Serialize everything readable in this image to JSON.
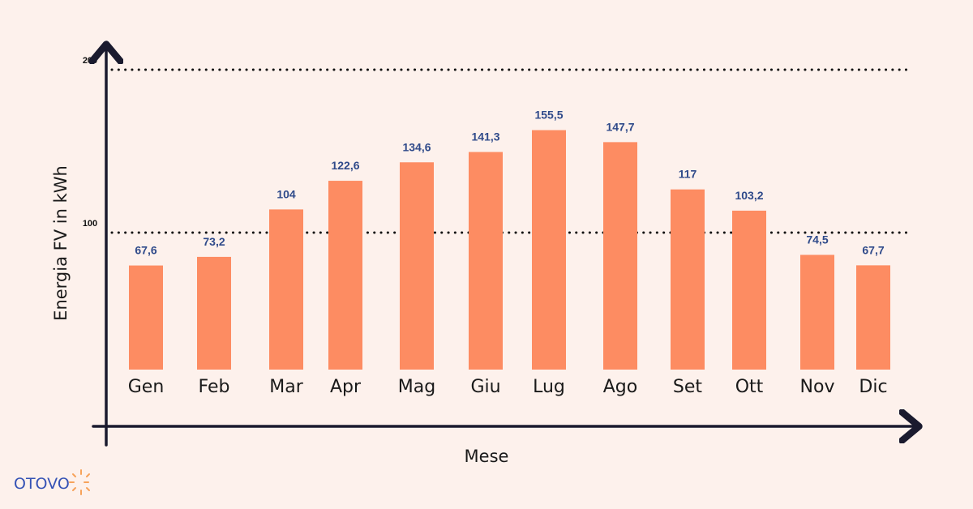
{
  "chart_data": {
    "type": "bar",
    "categories": [
      "Gen",
      "Feb",
      "Mar",
      "Apr",
      "Mag",
      "Giu",
      "Lug",
      "Ago",
      "Set",
      "Ott",
      "Nov",
      "Dic"
    ],
    "values": [
      67.6,
      73.2,
      104,
      122.6,
      134.6,
      141.3,
      155.5,
      147.7,
      117,
      103.2,
      74.5,
      67.7
    ],
    "value_labels": [
      "67,6",
      "73,2",
      "104",
      "122,6",
      "134,6",
      "141,3",
      "155,5",
      "147,7",
      "117",
      "103,2",
      "74,5",
      "67,7"
    ],
    "xlabel": "Mese",
    "ylabel": "Energia FV in kWh",
    "yticks": [
      100,
      200
    ],
    "ytick_labels": [
      "100",
      "200"
    ],
    "grid": "dotted lines at 100 and 200",
    "colors": {
      "bar": "#fd8c62",
      "value_label": "#2f4a8a",
      "axis": "#1a1a2e",
      "background": "#fdf1ec"
    }
  },
  "brand": {
    "logo_text": "OTOVO",
    "logo_icon": "sun-icon",
    "colors": {
      "text": "#3552b5",
      "icon": "#f7a25a"
    }
  }
}
